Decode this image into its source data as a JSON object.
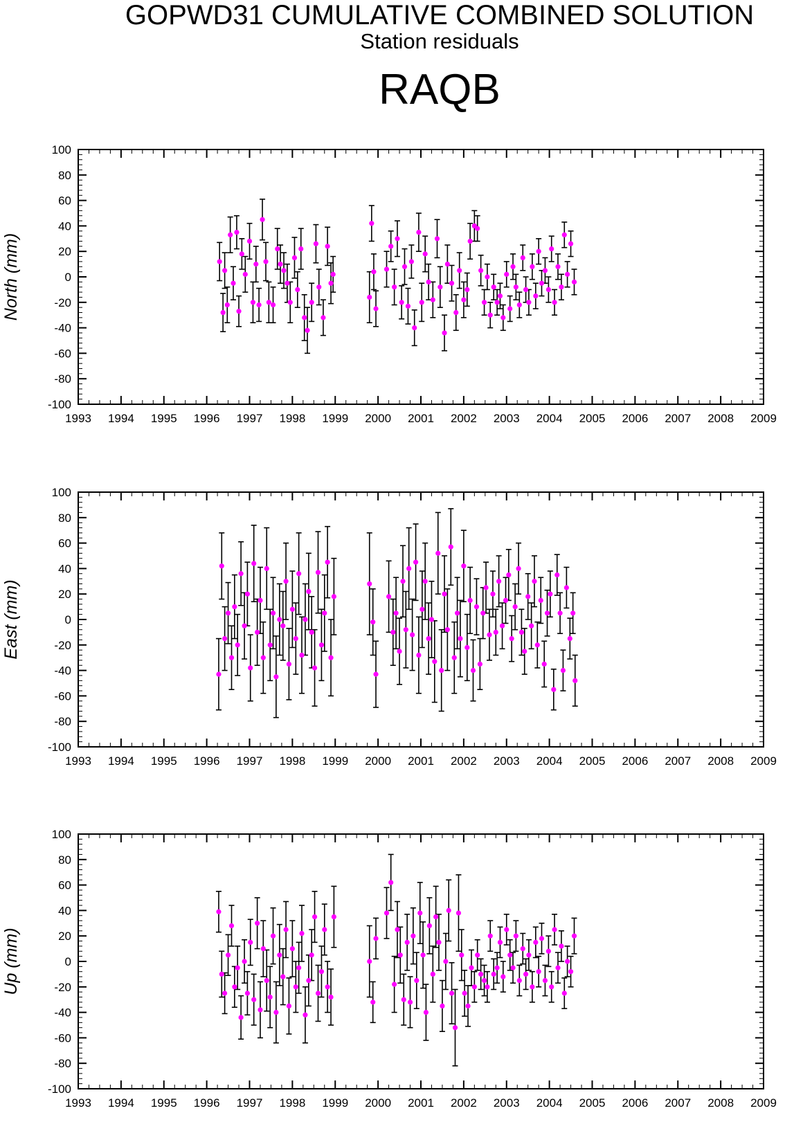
{
  "header": {
    "title": "GOPWD31 CUMULATIVE COMBINED SOLUTION",
    "subtitle": "Station residuals",
    "station": "RAQB"
  },
  "style": {
    "marker_color": "#ff00ff",
    "errorbar_color": "#000000",
    "frame_color": "#000000"
  },
  "chart_data": [
    {
      "type": "scatter",
      "ylabel": "North (mm)",
      "ylim": [
        -100,
        100
      ],
      "xlim": [
        1993,
        2009
      ],
      "x_ticks": [
        "1993",
        "1994",
        "1995",
        "1996",
        "1997",
        "1998",
        "1999",
        "2000",
        "2001",
        "2002",
        "2003",
        "2004",
        "2005",
        "2006",
        "2007",
        "2008",
        "2009"
      ],
      "y_ticks": [
        "100",
        "80",
        "60",
        "40",
        "20",
        "0",
        "-20",
        "-40",
        "-60",
        "-80",
        "-100"
      ],
      "series": [
        {
          "x": [
            1996.3,
            1996.38,
            1996.42,
            1996.48,
            1996.55,
            1996.62,
            1996.7,
            1996.75,
            1996.82,
            1996.9,
            1997.0,
            1997.08,
            1997.15,
            1997.22,
            1997.3,
            1997.38,
            1997.45,
            1997.55,
            1997.65,
            1997.72,
            1997.8,
            1997.88,
            1997.95,
            1998.05,
            1998.12,
            1998.2,
            1998.28,
            1998.35,
            1998.45,
            1998.55,
            1998.62,
            1998.72,
            1998.82,
            1998.9,
            1998.95,
            1999.8,
            1999.85,
            1999.9,
            1999.95,
            2000.2,
            2000.3,
            2000.38,
            2000.45,
            2000.55,
            2000.62,
            2000.7,
            2000.78,
            2000.85,
            2000.95,
            2001.02,
            2001.1,
            2001.18,
            2001.28,
            2001.38,
            2001.45,
            2001.55,
            2001.62,
            2001.72,
            2001.82,
            2001.9,
            2002.0,
            2002.08,
            2002.15,
            2002.25,
            2002.32,
            2002.4,
            2002.48,
            2002.55,
            2002.62,
            2002.7,
            2002.78,
            2002.85,
            2002.92,
            2003.0,
            2003.08,
            2003.15,
            2003.22,
            2003.3,
            2003.38,
            2003.45,
            2003.52,
            2003.6,
            2003.68,
            2003.75,
            2003.82,
            2003.9,
            2003.98,
            2004.05,
            2004.12,
            2004.2,
            2004.28,
            2004.35,
            2004.42,
            2004.5,
            2004.58
          ],
          "y": [
            12,
            -28,
            5,
            -22,
            33,
            -5,
            35,
            -27,
            18,
            2,
            28,
            -20,
            10,
            -22,
            45,
            12,
            -20,
            -22,
            22,
            10,
            5,
            -5,
            -20,
            15,
            -10,
            22,
            -32,
            -42,
            -20,
            26,
            -8,
            -32,
            24,
            -5,
            2,
            -16,
            42,
            4,
            -25,
            6,
            24,
            -8,
            30,
            -20,
            8,
            -23,
            12,
            -40,
            35,
            -20,
            18,
            -4,
            -18,
            30,
            -8,
            -44,
            10,
            -5,
            -28,
            5,
            -18,
            -10,
            28,
            40,
            38,
            5,
            -20,
            0,
            -30,
            -8,
            -20,
            -15,
            -32,
            2,
            -25,
            8,
            -8,
            -22,
            15,
            -10,
            -20,
            8,
            -15,
            20,
            -5,
            5,
            -10,
            22,
            -20,
            8,
            -8,
            33,
            2,
            26,
            -4
          ],
          "err": [
            15,
            15,
            14,
            14,
            14,
            13,
            13,
            12,
            12,
            14,
            14,
            16,
            14,
            13,
            16,
            15,
            16,
            14,
            16,
            15,
            14,
            15,
            16,
            16,
            14,
            16,
            18,
            18,
            15,
            15,
            14,
            14,
            15,
            16,
            14,
            20,
            14,
            14,
            14,
            14,
            12,
            14,
            14,
            13,
            14,
            14,
            13,
            14,
            15,
            15,
            14,
            14,
            14,
            15,
            16,
            14,
            15,
            14,
            14,
            14,
            14,
            13,
            14,
            12,
            10,
            12,
            10,
            10,
            10,
            10,
            10,
            10,
            10,
            10,
            10,
            10,
            10,
            10,
            10,
            10,
            10,
            10,
            10,
            10,
            10,
            10,
            10,
            10,
            10,
            10,
            10,
            10,
            10,
            10,
            10
          ]
        }
      ]
    },
    {
      "type": "scatter",
      "ylabel": "East (mm)",
      "ylim": [
        -100,
        100
      ],
      "xlim": [
        1993,
        2009
      ],
      "x_ticks": [
        "1993",
        "1994",
        "1995",
        "1996",
        "1997",
        "1998",
        "1999",
        "2000",
        "2001",
        "2002",
        "2003",
        "2004",
        "2005",
        "2006",
        "2007",
        "2008",
        "2009"
      ],
      "y_ticks": [
        "100",
        "80",
        "60",
        "40",
        "20",
        "0",
        "-20",
        "-40",
        "-60",
        "-80",
        "-100"
      ],
      "series": [
        {
          "x": [
            1996.28,
            1996.35,
            1996.42,
            1996.5,
            1996.58,
            1996.65,
            1996.72,
            1996.8,
            1996.88,
            1996.95,
            1997.02,
            1997.1,
            1997.18,
            1997.25,
            1997.32,
            1997.4,
            1997.48,
            1997.55,
            1997.62,
            1997.7,
            1997.78,
            1997.85,
            1997.92,
            1998.0,
            1998.08,
            1998.15,
            1998.22,
            1998.3,
            1998.38,
            1998.45,
            1998.52,
            1998.6,
            1998.68,
            1998.75,
            1998.82,
            1998.9,
            1998.97,
            1999.8,
            1999.88,
            1999.95,
            2000.25,
            2000.35,
            2000.42,
            2000.5,
            2000.58,
            2000.65,
            2000.72,
            2000.8,
            2000.88,
            2000.95,
            2001.03,
            2001.1,
            2001.18,
            2001.25,
            2001.32,
            2001.4,
            2001.48,
            2001.55,
            2001.62,
            2001.7,
            2001.78,
            2001.85,
            2001.92,
            2002.0,
            2002.08,
            2002.15,
            2002.22,
            2002.3,
            2002.38,
            2002.45,
            2002.52,
            2002.6,
            2002.68,
            2002.75,
            2002.82,
            2002.9,
            2002.98,
            2003.05,
            2003.12,
            2003.2,
            2003.28,
            2003.35,
            2003.42,
            2003.5,
            2003.58,
            2003.65,
            2003.72,
            2003.8,
            2003.88,
            2003.95,
            2004.02,
            2004.1,
            2004.18,
            2004.25,
            2004.32,
            2004.4,
            2004.48,
            2004.55,
            2004.6
          ],
          "y": [
            -43,
            42,
            -15,
            5,
            -30,
            10,
            -20,
            36,
            -5,
            20,
            -38,
            44,
            -10,
            15,
            -30,
            40,
            -20,
            5,
            -45,
            0,
            -5,
            30,
            -35,
            8,
            -15,
            36,
            -28,
            0,
            22,
            -10,
            -38,
            37,
            -20,
            5,
            45,
            -30,
            18,
            28,
            -2,
            -43,
            18,
            -10,
            5,
            -25,
            30,
            -8,
            40,
            -12,
            45,
            -28,
            8,
            30,
            -15,
            0,
            -33,
            52,
            -40,
            20,
            -8,
            57,
            -30,
            5,
            -15,
            42,
            -22,
            15,
            -40,
            10,
            -35,
            5,
            25,
            -12,
            20,
            -10,
            30,
            -5,
            15,
            35,
            -15,
            10,
            40,
            -10,
            -25,
            18,
            -5,
            30,
            -20,
            15,
            -35,
            5,
            20,
            -55,
            35,
            5,
            -40,
            25,
            -15,
            5,
            -48
          ],
          "err": [
            28,
            26,
            25,
            24,
            25,
            25,
            24,
            25,
            26,
            25,
            26,
            30,
            26,
            26,
            28,
            32,
            28,
            28,
            32,
            28,
            27,
            30,
            28,
            30,
            28,
            32,
            30,
            28,
            30,
            28,
            30,
            32,
            28,
            30,
            28,
            30,
            30,
            40,
            26,
            26,
            28,
            26,
            28,
            26,
            28,
            30,
            32,
            28,
            30,
            30,
            30,
            30,
            28,
            30,
            32,
            32,
            32,
            30,
            32,
            30,
            28,
            28,
            30,
            28,
            26,
            26,
            24,
            22,
            20,
            20,
            20,
            20,
            18,
            18,
            20,
            18,
            18,
            20,
            18,
            18,
            20,
            18,
            18,
            18,
            18,
            20,
            18,
            18,
            18,
            18,
            18,
            16,
            16,
            16,
            16,
            16,
            16,
            16,
            20
          ]
        }
      ]
    },
    {
      "type": "scatter",
      "ylabel": "Up (mm)",
      "ylim": [
        -100,
        100
      ],
      "xlim": [
        1993,
        2009
      ],
      "x_ticks": [
        "1993",
        "1994",
        "1995",
        "1996",
        "1997",
        "1998",
        "1999",
        "2000",
        "2001",
        "2002",
        "2003",
        "2004",
        "2005",
        "2006",
        "2007",
        "2008",
        "2009"
      ],
      "y_ticks": [
        "100",
        "80",
        "60",
        "40",
        "20",
        "0",
        "-20",
        "-40",
        "-60",
        "-80",
        "-100"
      ],
      "series": [
        {
          "x": [
            1996.28,
            1996.35,
            1996.42,
            1996.5,
            1996.58,
            1996.65,
            1996.72,
            1996.8,
            1996.88,
            1996.95,
            1997.02,
            1997.1,
            1997.18,
            1997.25,
            1997.32,
            1997.4,
            1997.48,
            1997.55,
            1997.62,
            1997.7,
            1997.78,
            1997.85,
            1997.92,
            1998.0,
            1998.08,
            1998.15,
            1998.22,
            1998.3,
            1998.38,
            1998.45,
            1998.52,
            1998.6,
            1998.68,
            1998.75,
            1998.82,
            1998.9,
            1998.97,
            1999.8,
            1999.88,
            1999.95,
            2000.2,
            2000.3,
            2000.38,
            2000.45,
            2000.52,
            2000.6,
            2000.68,
            2000.75,
            2000.82,
            2000.9,
            2000.98,
            2001.05,
            2001.12,
            2001.2,
            2001.28,
            2001.35,
            2001.42,
            2001.5,
            2001.58,
            2001.65,
            2001.72,
            2001.8,
            2001.88,
            2001.95,
            2002.02,
            2002.1,
            2002.18,
            2002.25,
            2002.32,
            2002.4,
            2002.48,
            2002.55,
            2002.62,
            2002.7,
            2002.78,
            2002.85,
            2002.92,
            2003.0,
            2003.08,
            2003.15,
            2003.22,
            2003.3,
            2003.38,
            2003.45,
            2003.52,
            2003.6,
            2003.68,
            2003.75,
            2003.82,
            2003.9,
            2003.98,
            2004.05,
            2004.12,
            2004.2,
            2004.28,
            2004.35,
            2004.42,
            2004.5,
            2004.58
          ],
          "y": [
            39,
            -10,
            -25,
            5,
            28,
            -20,
            -5,
            -44,
            0,
            -25,
            15,
            -30,
            30,
            -38,
            10,
            -15,
            -28,
            20,
            -40,
            5,
            -12,
            25,
            -35,
            10,
            -20,
            -5,
            22,
            -42,
            -15,
            5,
            35,
            -25,
            -8,
            25,
            -20,
            -28,
            35,
            0,
            -32,
            18,
            38,
            62,
            -18,
            25,
            5,
            -30,
            15,
            -32,
            20,
            -15,
            38,
            5,
            -40,
            28,
            -10,
            35,
            15,
            -35,
            0,
            40,
            -25,
            -52,
            38,
            5,
            -25,
            -35,
            -5,
            -20,
            5,
            -10,
            -15,
            -20,
            20,
            -10,
            -5,
            15,
            -12,
            25,
            5,
            -5,
            20,
            -15,
            10,
            -10,
            5,
            -20,
            15,
            -8,
            18,
            -15,
            8,
            -20,
            25,
            -5,
            12,
            -25,
            0,
            -8,
            20
          ],
          "err": [
            16,
            18,
            16,
            16,
            16,
            16,
            17,
            17,
            17,
            17,
            18,
            20,
            20,
            22,
            22,
            24,
            24,
            22,
            24,
            24,
            22,
            22,
            22,
            22,
            20,
            20,
            22,
            22,
            20,
            20,
            20,
            22,
            20,
            20,
            20,
            22,
            24,
            28,
            16,
            16,
            20,
            22,
            22,
            22,
            22,
            20,
            22,
            20,
            22,
            22,
            24,
            26,
            22,
            22,
            22,
            24,
            22,
            20,
            22,
            24,
            24,
            30,
            30,
            20,
            18,
            16,
            14,
            12,
            12,
            12,
            12,
            12,
            12,
            12,
            12,
            12,
            12,
            12,
            12,
            12,
            12,
            12,
            12,
            12,
            12,
            12,
            12,
            12,
            12,
            12,
            12,
            12,
            12,
            12,
            12,
            12,
            12,
            12,
            14
          ]
        }
      ]
    }
  ]
}
